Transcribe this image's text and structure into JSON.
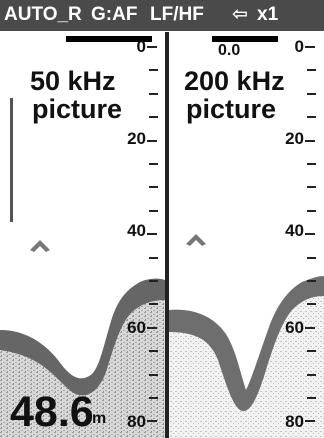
{
  "status_bar": {
    "mode": "AUTO_R",
    "gain": "G:AF",
    "frequency_mode": "LF/HF",
    "shift_arrow": "⇦",
    "zoom": "x1"
  },
  "left_panel": {
    "label_line1": "50 kHz",
    "label_line2": "picture",
    "depth_scale": [
      "0",
      "20",
      "40",
      "60",
      "80"
    ]
  },
  "right_panel": {
    "label_line1": "200 kHz",
    "label_line2": "picture",
    "depth_scale": [
      "0",
      "20",
      "40",
      "60",
      "80"
    ],
    "offset": "0.0"
  },
  "depth_readout": {
    "value": "48.6",
    "unit": "m"
  },
  "colors": {
    "echo_dark": "#5e5e5e",
    "echo_light": "#9a9a9a",
    "bar": "#4a4a4a"
  }
}
